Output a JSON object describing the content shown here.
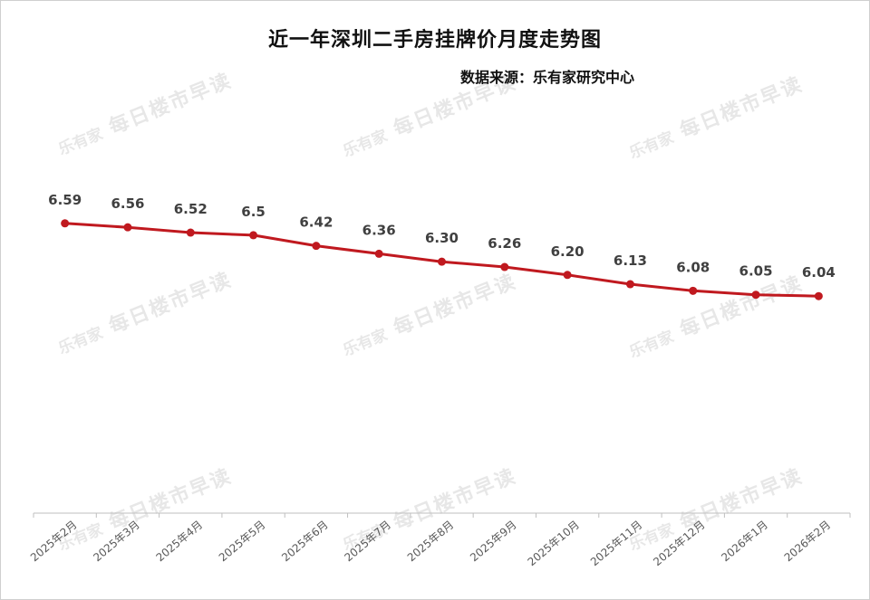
{
  "title": "近一年深圳二手房挂牌价月度走势图",
  "source": "数据来源：乐有家研究中心",
  "watermark": {
    "brand": "乐有家",
    "text": "每日楼市早读"
  },
  "colors": {
    "line": "#c0191f",
    "label": "#404040",
    "axis": "#bfbfbf"
  },
  "chart_data": {
    "type": "line",
    "title": "近一年深圳二手房挂牌价月度走势图",
    "categories": [
      "2025年2月",
      "2025年3月",
      "2025年4月",
      "2025年5月",
      "2025年6月",
      "2025年7月",
      "2025年8月",
      "2025年9月",
      "2025年10月",
      "2025年11月",
      "2025年12月",
      "2026年1月",
      "2026年2月"
    ],
    "values": [
      6.59,
      6.56,
      6.52,
      6.5,
      6.42,
      6.36,
      6.3,
      6.26,
      6.2,
      6.13,
      6.08,
      6.05,
      6.04
    ],
    "labels": [
      "6.59",
      "6.56",
      "6.52",
      "6.5",
      "6.42",
      "6.36",
      "6.30",
      "6.26",
      "6.20",
      "6.13",
      "6.08",
      "6.05",
      "6.04"
    ],
    "ylim": [
      4.4,
      6.65
    ],
    "grid": false,
    "legend": "none"
  }
}
